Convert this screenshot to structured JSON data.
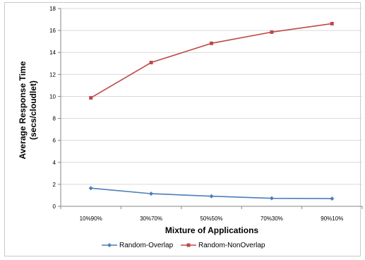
{
  "chart_data": {
    "type": "line",
    "title": "",
    "xlabel": "Mixture of Applications",
    "ylabel_line1": "Average Response Time",
    "ylabel_line2": "(secs/cloudlet)",
    "categories": [
      "10%90%",
      "30%70%",
      "50%50%",
      "70%30%",
      "90%10%"
    ],
    "ylim": [
      0,
      18
    ],
    "yticks": [
      0,
      2,
      4,
      6,
      8,
      10,
      12,
      14,
      16,
      18
    ],
    "grid": true,
    "legend_position": "bottom",
    "series": [
      {
        "name": "Random-Overlap",
        "color": "#4a7ebb",
        "marker": "diamond",
        "values": [
          1.65,
          1.15,
          0.92,
          0.73,
          0.7
        ]
      },
      {
        "name": "Random-NonOverlap",
        "color": "#be4b48",
        "marker": "square",
        "values": [
          9.87,
          13.08,
          14.83,
          15.85,
          16.62
        ]
      }
    ]
  }
}
